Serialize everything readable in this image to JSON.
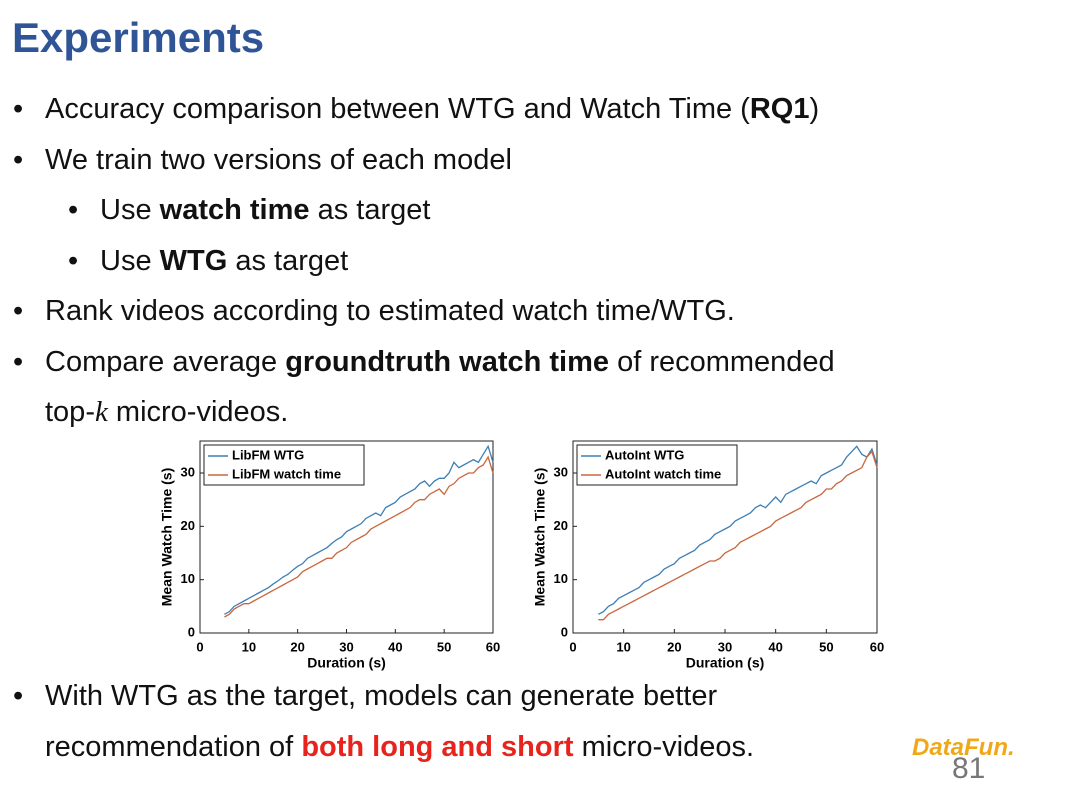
{
  "title": "Experiments",
  "bullets": [
    {
      "level": 1,
      "lines": [
        [
          {
            "text": "Accuracy comparison between WTG and Watch Time ("
          },
          {
            "text": "RQ1",
            "style": "bold"
          },
          {
            "text": ")"
          }
        ]
      ]
    },
    {
      "level": 1,
      "lines": [
        [
          {
            "text": "We train two versions of each model"
          }
        ]
      ]
    },
    {
      "level": 2,
      "lines": [
        [
          {
            "text": "Use "
          },
          {
            "text": "watch time",
            "style": "bold"
          },
          {
            "text": " as target"
          }
        ]
      ]
    },
    {
      "level": 2,
      "lines": [
        [
          {
            "text": "Use "
          },
          {
            "text": "WTG",
            "style": "bold"
          },
          {
            "text": " as target"
          }
        ]
      ]
    },
    {
      "level": 1,
      "lines": [
        [
          {
            "text": "Rank videos according to estimated watch time/WTG."
          }
        ]
      ]
    },
    {
      "level": 1,
      "lines": [
        [
          {
            "text": "Compare average "
          },
          {
            "text": "groundtruth watch time",
            "style": "bold"
          },
          {
            "text": " of recommended"
          }
        ],
        [
          {
            "text": "top-"
          },
          {
            "text": "k",
            "style": "italic"
          },
          {
            "text": " micro-videos."
          }
        ]
      ]
    }
  ],
  "conclusion": [
    {
      "level": 1,
      "lines": [
        [
          {
            "text": "With WTG as the target, models can generate better"
          }
        ],
        [
          {
            "text": "recommendation of "
          },
          {
            "text": "both long and short",
            "style": "red-bold"
          },
          {
            "text": " micro-videos."
          }
        ]
      ]
    }
  ],
  "logo": "DataFun.",
  "page_number": "81",
  "chart_data": [
    {
      "type": "line",
      "xlabel": "Duration (s)",
      "ylabel": "Mean Watch Time (s)",
      "x": [
        5,
        6,
        7,
        8,
        9,
        10,
        11,
        12,
        13,
        14,
        15,
        16,
        17,
        18,
        19,
        20,
        21,
        22,
        23,
        24,
        25,
        26,
        27,
        28,
        29,
        30,
        31,
        32,
        33,
        34,
        35,
        36,
        37,
        38,
        39,
        40,
        41,
        42,
        43,
        44,
        45,
        46,
        47,
        48,
        49,
        50,
        51,
        52,
        53,
        54,
        55,
        56,
        57,
        58,
        59,
        60
      ],
      "xlim": [
        0,
        60
      ],
      "xticks": [
        0,
        10,
        20,
        30,
        40,
        50,
        60
      ],
      "ylim": [
        0,
        36
      ],
      "yticks": [
        0,
        10,
        20,
        30
      ],
      "legend": "upper left",
      "series": [
        {
          "name": "LibFM WTG",
          "color": "#3d7fb5",
          "values": [
            3.5,
            4,
            5,
            5.5,
            6,
            6.5,
            7,
            7.5,
            8,
            8.5,
            9.2,
            9.8,
            10.5,
            11,
            11.8,
            12.5,
            13,
            14,
            14.5,
            15,
            15.5,
            16,
            16.8,
            17.5,
            18,
            19,
            19.5,
            20,
            20.5,
            21.5,
            22,
            22.5,
            22,
            23.5,
            24,
            24.5,
            25.5,
            26,
            26.5,
            27,
            28,
            28.5,
            27.5,
            28.5,
            29,
            29,
            30,
            32,
            31,
            31.5,
            32,
            32.5,
            32,
            33.5,
            35,
            32
          ]
        },
        {
          "name": "LibFM watch time",
          "color": "#c9673f",
          "values": [
            3,
            3.5,
            4.5,
            5,
            5.5,
            5.5,
            6,
            6.5,
            7,
            7.5,
            8,
            8.5,
            9,
            9.5,
            10,
            10.5,
            11.5,
            12,
            12.5,
            13,
            13.5,
            14,
            14,
            15,
            15.5,
            16,
            17,
            17.5,
            18,
            18.5,
            19.5,
            20,
            20.5,
            21,
            21.5,
            22,
            22.5,
            23,
            23.5,
            24.5,
            25,
            25,
            26,
            26.5,
            27,
            26,
            27.5,
            28,
            29,
            29.5,
            30,
            30,
            31,
            31.5,
            33,
            30
          ]
        }
      ]
    },
    {
      "type": "line",
      "xlabel": "Duration (s)",
      "ylabel": "Mean Watch Time (s)",
      "x": [
        5,
        6,
        7,
        8,
        9,
        10,
        11,
        12,
        13,
        14,
        15,
        16,
        17,
        18,
        19,
        20,
        21,
        22,
        23,
        24,
        25,
        26,
        27,
        28,
        29,
        30,
        31,
        32,
        33,
        34,
        35,
        36,
        37,
        38,
        39,
        40,
        41,
        42,
        43,
        44,
        45,
        46,
        47,
        48,
        49,
        50,
        51,
        52,
        53,
        54,
        55,
        56,
        57,
        58,
        59,
        60
      ],
      "xlim": [
        0,
        60
      ],
      "xticks": [
        0,
        10,
        20,
        30,
        40,
        50,
        60
      ],
      "ylim": [
        0,
        36
      ],
      "yticks": [
        0,
        10,
        20,
        30
      ],
      "legend": "upper left",
      "series": [
        {
          "name": "AutoInt WTG",
          "color": "#3d7fb5",
          "values": [
            3.5,
            4,
            5,
            5.5,
            6.5,
            7,
            7.5,
            8,
            8.5,
            9.5,
            10,
            10.5,
            11,
            12,
            12.5,
            13,
            14,
            14.5,
            15,
            15.5,
            16.5,
            17,
            17.5,
            18.5,
            19,
            19.5,
            20,
            21,
            21.5,
            22,
            22.5,
            23.5,
            24,
            23.5,
            24.5,
            25.5,
            24.5,
            26,
            26.5,
            27,
            27.5,
            28,
            28.5,
            28,
            29.5,
            30,
            30.5,
            31,
            31.5,
            33,
            34,
            35,
            33.5,
            33,
            34.5,
            31.5
          ]
        },
        {
          "name": "AutoInt watch time",
          "color": "#c9673f",
          "values": [
            2.5,
            2.5,
            3.5,
            4,
            4.5,
            5,
            5.5,
            6,
            6.5,
            7,
            7.5,
            8,
            8.5,
            9,
            9.5,
            10,
            10.5,
            11,
            11.5,
            12,
            12.5,
            13,
            13.5,
            13.5,
            14,
            15,
            15.5,
            16,
            17,
            17.5,
            18,
            18.5,
            19,
            19.5,
            20,
            21,
            21.5,
            22,
            22.5,
            23,
            23.5,
            24.5,
            25,
            25.5,
            26,
            27,
            27,
            28,
            28.5,
            29.5,
            30,
            30.5,
            31,
            33,
            34,
            31
          ]
        }
      ]
    }
  ]
}
